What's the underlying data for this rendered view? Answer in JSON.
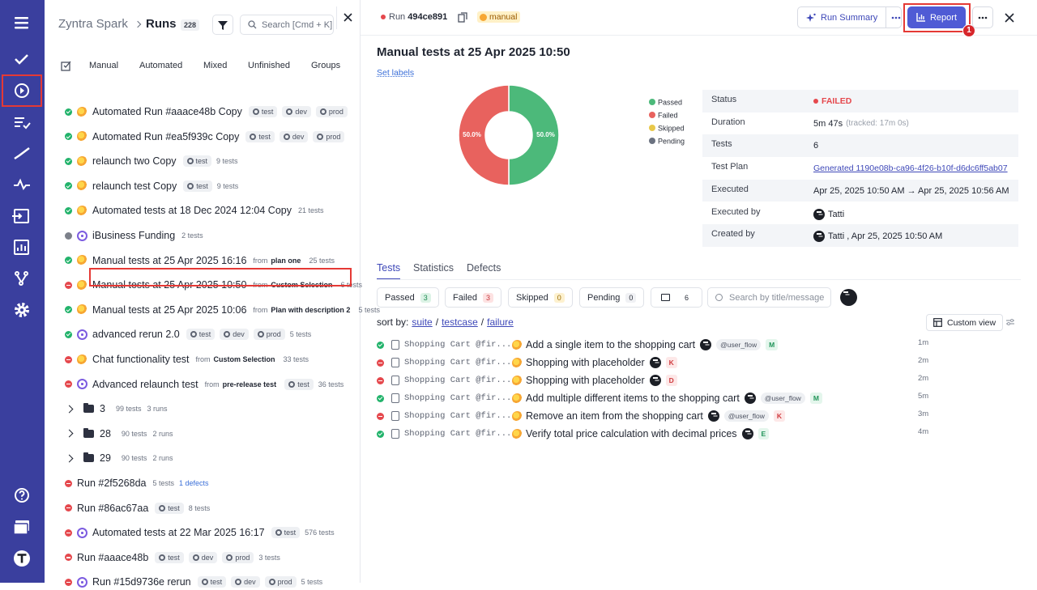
{
  "runs_panel": {
    "breadcrumb_project": "Zyntra Spark",
    "breadcrumb_page": "Runs",
    "count": "228",
    "search_placeholder": "Search [Cmd + K]",
    "tabs": [
      "Manual",
      "Automated",
      "Mixed",
      "Unfinished",
      "Groups"
    ],
    "from_word": "from",
    "runs": [
      {
        "status": "passed",
        "kind": "auto",
        "title": "Automated Run #aaace48b Copy",
        "tags": [
          "test",
          "dev",
          "prod"
        ]
      },
      {
        "status": "passed",
        "kind": "auto",
        "title": "Automated Run #ea5f939c Copy",
        "tags": [
          "test",
          "dev",
          "prod"
        ]
      },
      {
        "status": "passed",
        "kind": "auto",
        "title": "relaunch two Copy",
        "tags": [
          "test"
        ],
        "meta": [
          "9 tests"
        ]
      },
      {
        "status": "passed",
        "kind": "auto",
        "title": "relaunch test Copy",
        "tags": [
          "test"
        ],
        "meta": [
          "9 tests"
        ]
      },
      {
        "status": "passed",
        "kind": "auto",
        "title": "Automated tests at 18 Dec 2024 12:04 Copy",
        "meta": [
          "21 tests"
        ]
      },
      {
        "status": "pending",
        "kind": "manual",
        "title": "iBusiness Funding",
        "meta": [
          "2 tests"
        ]
      },
      {
        "status": "passed",
        "kind": "auto",
        "title": "Manual tests at 25 Apr 2025 16:16",
        "from": "plan one",
        "meta": [
          "25 tests"
        ]
      },
      {
        "status": "failed",
        "kind": "auto",
        "title": "Manual tests at 25 Apr 2025 10:50",
        "from": "Custom Selection",
        "meta": [
          "6 tests"
        ],
        "selected": true
      },
      {
        "status": "passed",
        "kind": "auto",
        "title": "Manual tests at 25 Apr 2025 10:06",
        "from": "Plan with description 2",
        "meta": [
          "5 tests"
        ]
      },
      {
        "status": "passed",
        "kind": "manual",
        "title": "advanced rerun 2.0",
        "tags": [
          "test",
          "dev",
          "prod"
        ],
        "meta": [
          "5 tests"
        ]
      },
      {
        "status": "failed",
        "kind": "auto",
        "title": "Chat functionality test",
        "from": "Custom Selection",
        "meta": [
          "33 tests"
        ]
      },
      {
        "status": "failed",
        "kind": "manual",
        "title": "Advanced relaunch test",
        "from": "pre-release test",
        "tags": [
          "test"
        ],
        "meta": [
          "36 tests"
        ]
      },
      {
        "kind": "folder",
        "title": "3",
        "meta": [
          "99 tests",
          "3 runs"
        ]
      },
      {
        "kind": "folder",
        "title": "28",
        "meta": [
          "90 tests",
          "2 runs"
        ]
      },
      {
        "kind": "folder",
        "title": "29",
        "meta": [
          "90 tests",
          "2 runs"
        ]
      },
      {
        "status": "failed",
        "kind": "none",
        "title": "Run #2f5268da",
        "meta": [
          "5 tests"
        ],
        "link": "1 defects"
      },
      {
        "status": "failed",
        "kind": "none",
        "title": "Run #86ac67aa",
        "tags": [
          "test"
        ],
        "meta": [
          "8 tests"
        ]
      },
      {
        "status": "failed",
        "kind": "manual",
        "title": "Automated tests at 22 Mar 2025 16:17",
        "tags": [
          "test"
        ],
        "meta": [
          "576 tests"
        ]
      },
      {
        "status": "failed",
        "kind": "none",
        "title": "Run #aaace48b",
        "tags": [
          "test",
          "dev",
          "prod"
        ],
        "meta": [
          "3 tests"
        ]
      },
      {
        "status": "failed",
        "kind": "manual",
        "title": "Run #15d9736e rerun",
        "tags": [
          "test",
          "dev",
          "prod"
        ],
        "meta": [
          "5 tests"
        ]
      }
    ]
  },
  "header": {
    "run_label": "Run",
    "run_id": "494ce891",
    "badge": "manual",
    "run_summary": "Run Summary",
    "report": "Report",
    "step_badge": "1"
  },
  "title": "Manual tests at 25 Apr 2025 10:50",
  "set_labels": "Set labels",
  "chart_data": {
    "type": "pie",
    "donut": true,
    "categories": [
      "Passed",
      "Failed",
      "Skipped",
      "Pending"
    ],
    "values": [
      50,
      50,
      0,
      0
    ],
    "value_labels": [
      "50.0%",
      "50.0%",
      null,
      null
    ],
    "colors": [
      "#4cb97a",
      "#e8625e",
      "#e8c84a",
      "#6b7280"
    ]
  },
  "details": [
    {
      "label": "Status",
      "value": "FAILED"
    },
    {
      "label": "Duration",
      "value": "5m 47s",
      "note": "(tracked: 17m 0s)"
    },
    {
      "label": "Tests",
      "value": "6"
    },
    {
      "label": "Test Plan",
      "link": "Generated 1190e08b-ca96-4f26-b10f-d6dc6ff5ab07"
    },
    {
      "label": "Executed",
      "value": "Apr 25, 2025 10:50 AM → Apr 25, 2025 10:56 AM"
    },
    {
      "label": "Executed by",
      "user": "Tatti"
    },
    {
      "label": "Created by",
      "user": "Tatti , Apr 25, 2025 10:50 AM"
    }
  ],
  "tabs": [
    "Tests",
    "Statistics",
    "Defects"
  ],
  "filters": [
    {
      "label": "Passed",
      "count": "3",
      "status": "passed"
    },
    {
      "label": "Failed",
      "count": "3",
      "status": "failed"
    },
    {
      "label": "Skipped",
      "count": "0",
      "status": "skipped"
    },
    {
      "label": "Pending",
      "count": "0",
      "status": "pending"
    }
  ],
  "comments_count": "6",
  "test_search_placeholder": "Search by title/message",
  "sort": {
    "label": "sort by:",
    "options": [
      "suite",
      "testcase",
      "failure"
    ],
    "separator": "/"
  },
  "custom_view": "Custom view",
  "tests": [
    {
      "status": "passed",
      "suite": "Shopping Cart @fir...",
      "title": "Add a single item to the shopping cart",
      "tag": "@user_flow",
      "letter": "M",
      "time": "1m"
    },
    {
      "status": "failed",
      "suite": "Shopping Cart @fir...",
      "title": "Shopping with placeholder",
      "letter": "K",
      "time": "2m"
    },
    {
      "status": "failed",
      "suite": "Shopping Cart @fir...",
      "title": "Shopping with placeholder",
      "letter": "D",
      "time": "2m"
    },
    {
      "status": "passed",
      "suite": "Shopping Cart @fir...",
      "title": "Add multiple different items to the shopping cart",
      "tag": "@user_flow",
      "letter": "M",
      "time": "5m"
    },
    {
      "status": "failed",
      "suite": "Shopping Cart @fir...",
      "title": "Remove an item from the shopping cart",
      "tag": "@user_flow",
      "letter": "K",
      "time": "3m"
    },
    {
      "status": "passed",
      "suite": "Shopping Cart @fir...",
      "title": "Verify total price calculation with decimal prices",
      "letter": "E",
      "time": "4m"
    }
  ]
}
